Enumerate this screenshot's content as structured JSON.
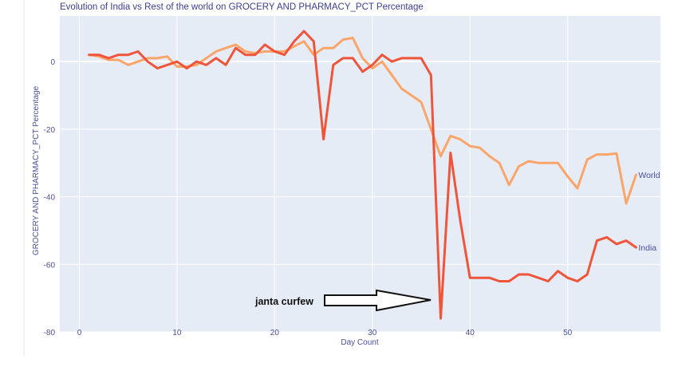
{
  "chart_data": {
    "type": "line",
    "title": "Evolution of India vs Rest of the world on GROCERY AND PHARMACY_PCT Percentage",
    "xlabel": "Day Count",
    "ylabel": "GROCERY AND PHARMACY_PCT Percentage",
    "xlim": [
      -2,
      59.5
    ],
    "ylim": [
      -80,
      13.5
    ],
    "x_ticks": [
      0,
      10,
      20,
      30,
      40,
      50
    ],
    "y_ticks": [
      0,
      -20,
      -40,
      -60,
      -80
    ],
    "grid": true,
    "colors": {
      "plot_bg": "#e5ecf6",
      "grid": "#ffffff",
      "india": "#ef553b",
      "world": "#fba56a",
      "text": "#4b4f9a"
    },
    "series": [
      {
        "name": "World",
        "color": "#fba56a",
        "x": [
          1,
          2,
          3,
          4,
          5,
          6,
          7,
          8,
          9,
          10,
          11,
          12,
          13,
          14,
          15,
          16,
          17,
          18,
          19,
          20,
          21,
          22,
          23,
          24,
          25,
          26,
          27,
          28,
          29,
          30,
          31,
          32,
          33,
          34,
          35,
          36,
          37,
          38,
          39,
          40,
          41,
          42,
          43,
          44,
          45,
          46,
          47,
          48,
          49,
          50,
          51,
          52,
          53,
          54,
          55,
          56,
          57
        ],
        "values": [
          2,
          1.5,
          0.5,
          0.5,
          -1,
          0,
          1,
          1,
          1.5,
          -1.5,
          -1.5,
          -1,
          1,
          3,
          4,
          5,
          3,
          2.5,
          3,
          3,
          3,
          4.5,
          6,
          2,
          4,
          4,
          6.5,
          7,
          1,
          -2,
          0,
          -4,
          -8,
          -10,
          -12,
          -20,
          -28,
          -22,
          -23,
          -25,
          -25.5,
          -28,
          -30,
          -36.5,
          -31,
          -29.5,
          -30,
          -30,
          -30,
          -34,
          -37.5,
          -29,
          -27.5,
          -27.5,
          -27.2,
          -42,
          -33.5
        ]
      },
      {
        "name": "India",
        "color": "#ef553b",
        "x": [
          1,
          2,
          3,
          4,
          5,
          6,
          7,
          8,
          9,
          10,
          11,
          12,
          13,
          14,
          15,
          16,
          17,
          18,
          19,
          20,
          21,
          22,
          23,
          24,
          25,
          26,
          27,
          28,
          29,
          30,
          31,
          32,
          33,
          34,
          35,
          36,
          37,
          38,
          39,
          40,
          41,
          42,
          43,
          44,
          45,
          46,
          47,
          48,
          49,
          50,
          51,
          52,
          53,
          54,
          55,
          56,
          57
        ],
        "values": [
          2,
          2,
          1,
          2,
          2,
          3,
          0,
          -2,
          -1,
          0,
          -2,
          0,
          -1,
          1,
          -1,
          4,
          2,
          2,
          5,
          3,
          2,
          6,
          9,
          6,
          -23,
          -1,
          1,
          1,
          -3,
          -1,
          2,
          0,
          1,
          1,
          1,
          -4,
          -76,
          -27,
          -47,
          -64,
          -64,
          -64,
          -65,
          -65,
          -63,
          -63,
          -64,
          -65,
          -62,
          -64,
          -65,
          -63,
          -53,
          -52,
          -54,
          -53,
          -55
        ]
      }
    ],
    "series_labels": [
      "World",
      "India"
    ],
    "annotation": {
      "text": "janta curfew",
      "points_to": {
        "x": 37,
        "y": -76
      }
    }
  }
}
